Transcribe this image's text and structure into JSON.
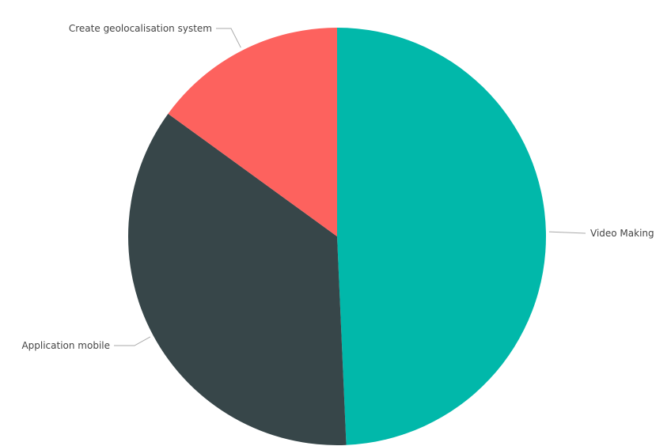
{
  "chart_data": {
    "type": "pie",
    "title": "",
    "slices": [
      {
        "label": "Video Making",
        "value": 49.3,
        "color": "#01B8AA"
      },
      {
        "label": "Application mobile",
        "value": 35.7,
        "color": "#374649"
      },
      {
        "label": "Create geolocalisation system",
        "value": 15.0,
        "color": "#FD625E"
      }
    ],
    "start_angle_deg": 0,
    "direction": "clockwise",
    "legend": "none",
    "data_labels": "outside-with-leader-lines"
  }
}
